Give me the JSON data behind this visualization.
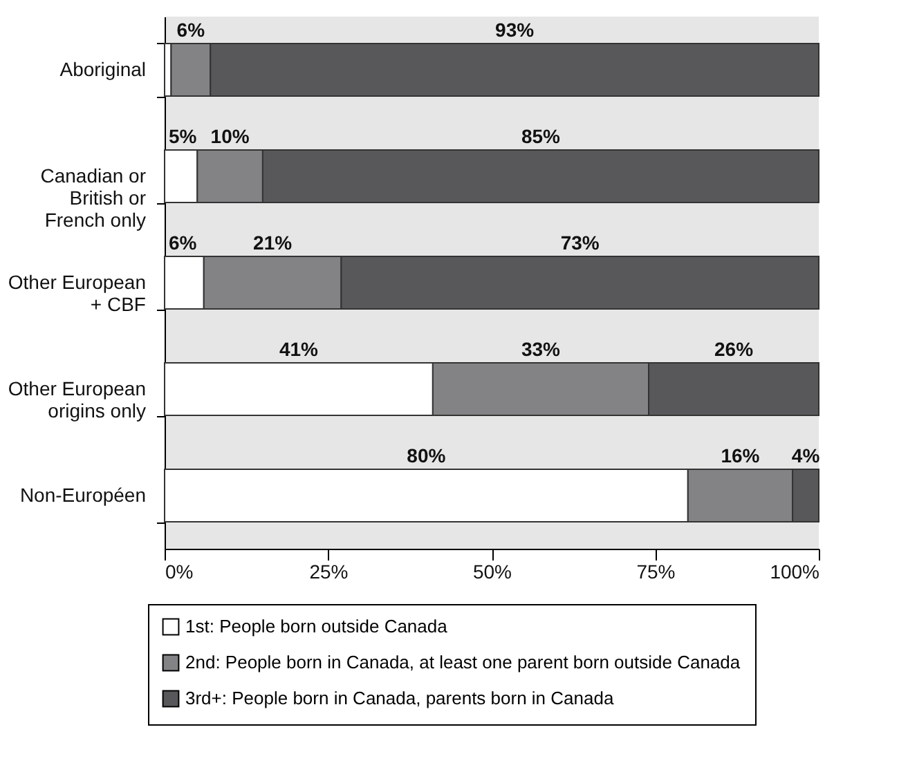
{
  "chart_data": {
    "type": "bar",
    "orientation": "horizontal",
    "stacked": true,
    "categories": [
      "Aboriginal",
      "Canadian or\nBritish or\nFrench only",
      "Other European\n+ CBF",
      "Other European\norigins only",
      "Non-Européen"
    ],
    "series": [
      {
        "name": "1st: People born outside Canada",
        "color": "#ffffff",
        "values": [
          1,
          5,
          6,
          41,
          80
        ],
        "value_labels": [
          null,
          "5%",
          "6%",
          "41%",
          "80%"
        ]
      },
      {
        "name": "2nd: People born in Canada, at least one parent born outside Canada",
        "color": "#838386",
        "values": [
          6,
          10,
          21,
          33,
          16
        ],
        "value_labels": [
          "6%",
          "10%",
          "21%",
          "33%",
          "16%"
        ]
      },
      {
        "name": "3rd+: People born in Canada, parents born in Canada",
        "color": "#58585b",
        "values": [
          93,
          85,
          73,
          26,
          4
        ],
        "value_labels": [
          "93%",
          "85%",
          "73%",
          "26%",
          "4%"
        ]
      }
    ],
    "xlim": [
      0,
      100
    ],
    "xticks": [
      {
        "value": 0,
        "label": "0%"
      },
      {
        "value": 25,
        "label": "25%"
      },
      {
        "value": 50,
        "label": "50%"
      },
      {
        "value": 75,
        "label": "75%"
      },
      {
        "value": 100,
        "label": "100%"
      }
    ],
    "grid": false,
    "legend": "bottom"
  }
}
